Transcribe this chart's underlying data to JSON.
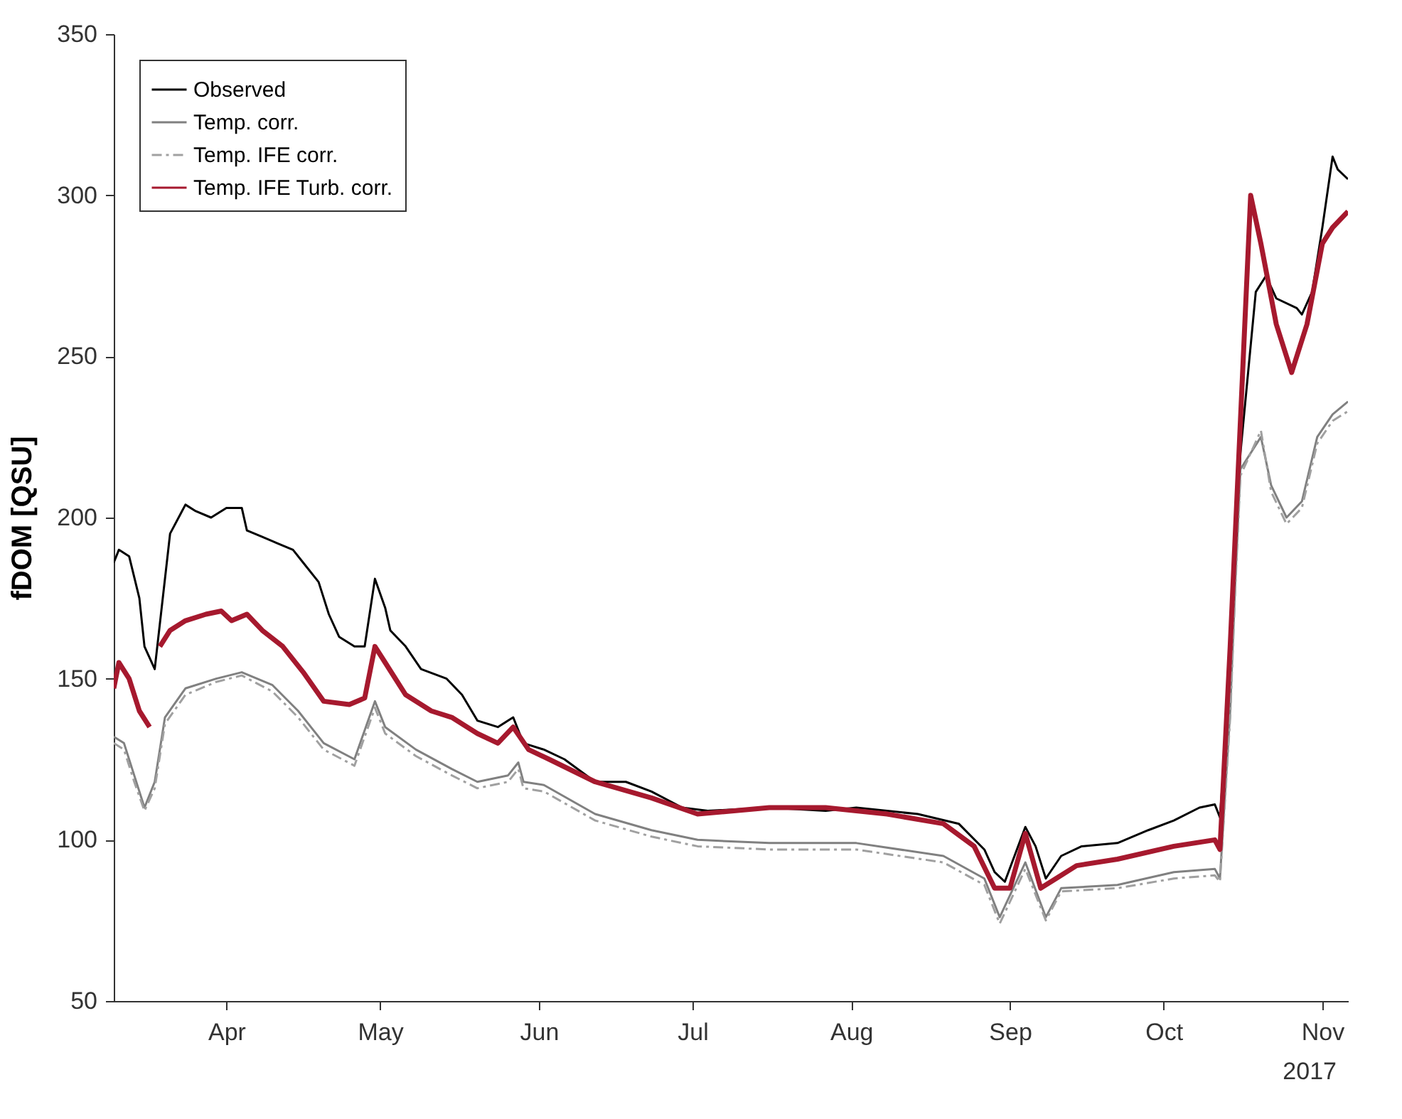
{
  "chart_data": {
    "type": "line",
    "ylabel": "fDOM [QSU]",
    "xlim": [
      "2017-03-10",
      "2017-11-06"
    ],
    "xticks": [
      {
        "value": "2017-04-01",
        "label": "Apr"
      },
      {
        "value": "2017-05-01",
        "label": "May"
      },
      {
        "value": "2017-06-01",
        "label": "Jun"
      },
      {
        "value": "2017-07-01",
        "label": "Jul"
      },
      {
        "value": "2017-08-01",
        "label": "Aug"
      },
      {
        "value": "2017-09-01",
        "label": "Sep"
      },
      {
        "value": "2017-10-01",
        "label": "Oct"
      },
      {
        "value": "2017-11-01",
        "label": "Nov"
      }
    ],
    "ylim": [
      50,
      350
    ],
    "yticks": [
      50,
      100,
      150,
      200,
      250,
      300,
      350
    ],
    "grid": false,
    "legend": "top left",
    "annotations": [
      "2017"
    ],
    "series": [
      {
        "name": "Observed",
        "color": "#000000",
        "line_style": "solid",
        "x": [
          "2017-03-10",
          "2017-03-11",
          "2017-03-13",
          "2017-03-15",
          "2017-03-16",
          "2017-03-18",
          "2017-03-21",
          "2017-03-24",
          "2017-03-26",
          "2017-03-29",
          "2017-04-01",
          "2017-04-04",
          "2017-04-05",
          "2017-04-08",
          "2017-04-11",
          "2017-04-14",
          "2017-04-16",
          "2017-04-19",
          "2017-04-21",
          "2017-04-23",
          "2017-04-26",
          "2017-04-28",
          "2017-04-30",
          "2017-05-02",
          "2017-05-03",
          "2017-05-06",
          "2017-05-09",
          "2017-05-14",
          "2017-05-17",
          "2017-05-20",
          "2017-05-24",
          "2017-05-27",
          "2017-05-29",
          "2017-06-02",
          "2017-06-06",
          "2017-06-12",
          "2017-06-18",
          "2017-06-23",
          "2017-06-29",
          "2017-07-04",
          "2017-07-16",
          "2017-07-27",
          "2017-08-02",
          "2017-08-14",
          "2017-08-22",
          "2017-08-27",
          "2017-08-29",
          "2017-08-31",
          "2017-09-04",
          "2017-09-06",
          "2017-09-08",
          "2017-09-11",
          "2017-09-15",
          "2017-09-22",
          "2017-09-28",
          "2017-10-03",
          "2017-10-08",
          "2017-10-11",
          "2017-10-12",
          "2017-10-14",
          "2017-10-16",
          "2017-10-19",
          "2017-10-21",
          "2017-10-23",
          "2017-10-27",
          "2017-10-28",
          "2017-10-30",
          "2017-11-01",
          "2017-11-03",
          "2017-11-04",
          "2017-11-06"
        ],
        "values": [
          186,
          190,
          188,
          175,
          160,
          153,
          195,
          204,
          202,
          200,
          203,
          203,
          196,
          194,
          192,
          190,
          186,
          180,
          170,
          163,
          160,
          160,
          181,
          172,
          165,
          160,
          153,
          150,
          145,
          137,
          135,
          138,
          130,
          128,
          125,
          118,
          118,
          115,
          110,
          109,
          110,
          109,
          110,
          108,
          105,
          97,
          90,
          87,
          104,
          98,
          88,
          95,
          98,
          99,
          103,
          106,
          110,
          111,
          107,
          150,
          220,
          270,
          275,
          268,
          265,
          263,
          270,
          290,
          312,
          308,
          305
        ]
      },
      {
        "name": "Temp. corr.",
        "color": "#808080",
        "line_style": "solid",
        "x": [
          "2017-03-10",
          "2017-03-12",
          "2017-03-14",
          "2017-03-16",
          "2017-03-18",
          "2017-03-20",
          "2017-03-24",
          "2017-03-30",
          "2017-04-04",
          "2017-04-10",
          "2017-04-15",
          "2017-04-20",
          "2017-04-26",
          "2017-04-30",
          "2017-05-02",
          "2017-05-08",
          "2017-05-15",
          "2017-05-20",
          "2017-05-26",
          "2017-05-28",
          "2017-05-29",
          "2017-06-02",
          "2017-06-12",
          "2017-06-23",
          "2017-07-02",
          "2017-07-16",
          "2017-08-02",
          "2017-08-19",
          "2017-08-27",
          "2017-08-30",
          "2017-09-04",
          "2017-09-08",
          "2017-09-11",
          "2017-09-22",
          "2017-10-03",
          "2017-10-11",
          "2017-10-12",
          "2017-10-14",
          "2017-10-15",
          "2017-10-16",
          "2017-10-20",
          "2017-10-22",
          "2017-10-25",
          "2017-10-28",
          "2017-10-31",
          "2017-11-03",
          "2017-11-06"
        ],
        "values": [
          132,
          130,
          120,
          110,
          118,
          138,
          147,
          150,
          152,
          148,
          140,
          130,
          125,
          143,
          135,
          128,
          122,
          118,
          120,
          124,
          118,
          117,
          108,
          103,
          100,
          99,
          99,
          95,
          88,
          76,
          93,
          76,
          85,
          86,
          90,
          91,
          88,
          140,
          180,
          215,
          225,
          210,
          200,
          205,
          225,
          232,
          236
        ]
      },
      {
        "name": "Temp. IFE corr.",
        "color": "#a0a0a0",
        "line_style": "dashed",
        "x": [
          "2017-03-10",
          "2017-03-12",
          "2017-03-14",
          "2017-03-16",
          "2017-03-18",
          "2017-03-20",
          "2017-03-24",
          "2017-03-30",
          "2017-04-04",
          "2017-04-10",
          "2017-04-15",
          "2017-04-20",
          "2017-04-26",
          "2017-04-30",
          "2017-05-02",
          "2017-05-08",
          "2017-05-15",
          "2017-05-20",
          "2017-05-26",
          "2017-05-28",
          "2017-05-29",
          "2017-06-02",
          "2017-06-12",
          "2017-06-23",
          "2017-07-02",
          "2017-07-16",
          "2017-08-02",
          "2017-08-19",
          "2017-08-27",
          "2017-08-30",
          "2017-09-04",
          "2017-09-08",
          "2017-09-11",
          "2017-09-22",
          "2017-10-03",
          "2017-10-11",
          "2017-10-12",
          "2017-10-14",
          "2017-10-15",
          "2017-10-16",
          "2017-10-20",
          "2017-10-22",
          "2017-10-25",
          "2017-10-28",
          "2017-10-31",
          "2017-11-03",
          "2017-11-06"
        ],
        "values": [
          130,
          128,
          118,
          109,
          116,
          136,
          145,
          149,
          151,
          146,
          138,
          128,
          123,
          141,
          133,
          126,
          120,
          116,
          118,
          122,
          116,
          115,
          106,
          101,
          98,
          97,
          97,
          93,
          86,
          74,
          91,
          75,
          84,
          85,
          88,
          89,
          87,
          138,
          178,
          213,
          227,
          208,
          198,
          203,
          223,
          230,
          233
        ]
      },
      {
        "name": "Temp. IFE Turb. corr.",
        "color": "#a6192e",
        "line_style": "solid",
        "x": [
          "2017-03-10",
          "2017-03-11",
          "2017-03-13",
          "2017-03-15",
          "2017-03-17",
          "2017-03-18",
          "2017-03-19",
          "2017-03-21",
          "2017-03-24",
          "2017-03-28",
          "2017-03-31",
          "2017-04-02",
          "2017-04-05",
          "2017-04-08",
          "2017-04-12",
          "2017-04-16",
          "2017-04-20",
          "2017-04-25",
          "2017-04-28",
          "2017-04-30",
          "2017-05-02",
          "2017-05-06",
          "2017-05-11",
          "2017-05-15",
          "2017-05-20",
          "2017-05-24",
          "2017-05-27",
          "2017-05-30",
          "2017-06-03",
          "2017-06-12",
          "2017-06-23",
          "2017-07-02",
          "2017-07-16",
          "2017-07-27",
          "2017-08-08",
          "2017-08-19",
          "2017-08-25",
          "2017-08-29",
          "2017-09-01",
          "2017-09-04",
          "2017-09-07",
          "2017-09-10",
          "2017-09-14",
          "2017-09-22",
          "2017-10-03",
          "2017-10-11",
          "2017-10-12",
          "2017-10-14",
          "2017-10-16",
          "2017-10-18",
          "2017-10-20",
          "2017-10-23",
          "2017-10-26",
          "2017-10-29",
          "2017-11-01",
          "2017-11-03",
          "2017-11-06"
        ],
        "values": [
          147,
          155,
          150,
          140,
          135,
          null,
          160,
          165,
          168,
          170,
          171,
          168,
          170,
          165,
          160,
          152,
          143,
          142,
          144,
          160,
          155,
          145,
          140,
          138,
          133,
          130,
          135,
          128,
          125,
          118,
          113,
          108,
          110,
          110,
          108,
          105,
          98,
          85,
          85,
          102,
          85,
          88,
          92,
          94,
          98,
          100,
          97,
          160,
          230,
          300,
          285,
          260,
          245,
          260,
          285,
          290,
          295
        ]
      }
    ]
  }
}
